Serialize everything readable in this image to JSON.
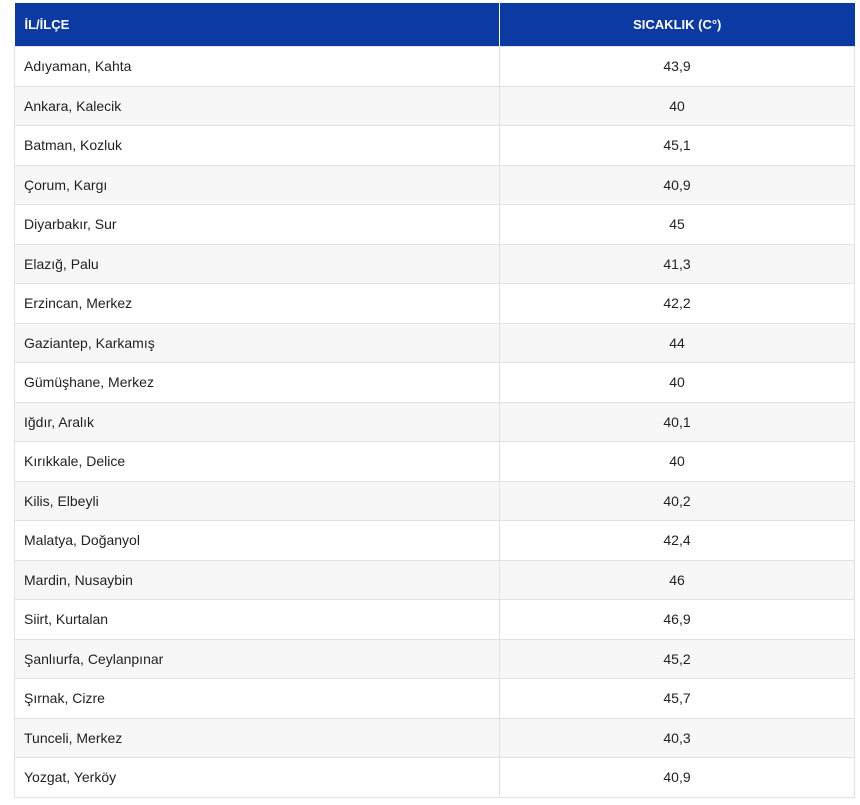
{
  "table": {
    "header": [
      "İL/İLÇE",
      "SICAKLIK (C°)"
    ],
    "rows": [
      [
        "Adıyaman, Kahta",
        "43,9"
      ],
      [
        "Ankara, Kalecik",
        "40"
      ],
      [
        "Batman, Kozluk",
        "45,1"
      ],
      [
        "Çorum, Kargı",
        "40,9"
      ],
      [
        "Diyarbakır, Sur",
        "45"
      ],
      [
        "Elazığ, Palu",
        "41,3"
      ],
      [
        "Erzincan, Merkez",
        "42,2"
      ],
      [
        "Gaziantep, Karkamış",
        "44"
      ],
      [
        "Gümüşhane, Merkez",
        "40"
      ],
      [
        "Iğdır, Aralık",
        "40,1"
      ],
      [
        "Kırıkkale, Delice",
        "40"
      ],
      [
        "Kilis, Elbeyli",
        "40,2"
      ],
      [
        "Malatya, Doğanyol",
        "42,4"
      ],
      [
        "Mardin, Nusaybin",
        "46"
      ],
      [
        "Siirt, Kurtalan",
        "46,9"
      ],
      [
        "Şanlıurfa, Ceylanpınar",
        "45,2"
      ],
      [
        "Şırnak, Cizre",
        "45,7"
      ],
      [
        "Tunceli, Merkez",
        "40,3"
      ],
      [
        "Yozgat, Yerköy",
        "40,9"
      ]
    ]
  }
}
